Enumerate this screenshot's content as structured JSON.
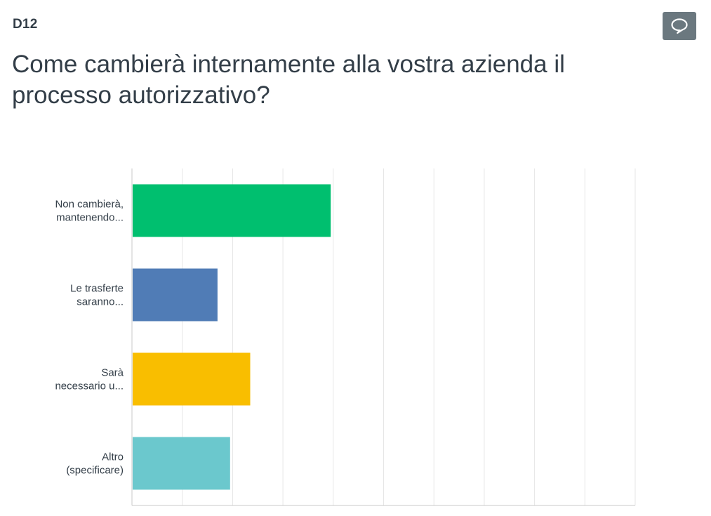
{
  "question": {
    "number": "D12",
    "title": "Come cambierà internamente alla vostra azienda il processo autorizzativo?",
    "comment_icon": "speech-bubble-icon"
  },
  "colors": {
    "text": "#333e48",
    "grid": "#e6e6e6",
    "axis": "#c8c8c8",
    "comment_button": "#6b787f"
  },
  "chart_data": {
    "type": "bar",
    "orientation": "horizontal",
    "categories": [
      [
        "Non cambierà,",
        "mantenendo..."
      ],
      [
        "Le trasferte",
        "saranno..."
      ],
      [
        "Sarà",
        "necessario u..."
      ],
      [
        "Altro",
        "(specificare)"
      ]
    ],
    "values": [
      39.5,
      17,
      23.5,
      19.5
    ],
    "colors": [
      "#00bf6f",
      "#507cb6",
      "#f9be00",
      "#6bc8cd"
    ],
    "xlim": [
      0,
      100
    ],
    "gridlines": 10,
    "grid": true,
    "tick_labels_visible": false
  }
}
